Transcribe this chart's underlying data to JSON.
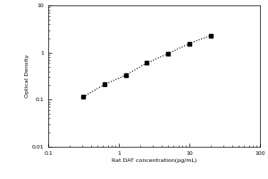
{
  "xlabel": "Rat DAT concentration(pg/mL)",
  "ylabel": "Optical Density",
  "x_data": [
    0.313,
    0.625,
    1.25,
    2.5,
    5,
    10,
    20
  ],
  "y_data": [
    0.114,
    0.21,
    0.33,
    0.6,
    0.95,
    1.55,
    2.3
  ],
  "xlim": [
    0.1,
    100
  ],
  "ylim": [
    0.01,
    10
  ],
  "marker": "s",
  "marker_color": "black",
  "marker_size": 3.5,
  "line_style": ":",
  "line_color": "black",
  "line_width": 0.8,
  "bg_color": "#ffffff",
  "yticks": [
    0.01,
    0.1,
    1,
    10
  ],
  "ytick_labels": [
    "0.01",
    "0.1",
    "1",
    "10"
  ],
  "xticks": [
    0.1,
    1,
    10,
    100
  ],
  "xtick_labels": [
    "0.1",
    "1",
    "10",
    "100"
  ],
  "axis_label_fontsize": 4.5,
  "tick_fontsize": 4.5
}
